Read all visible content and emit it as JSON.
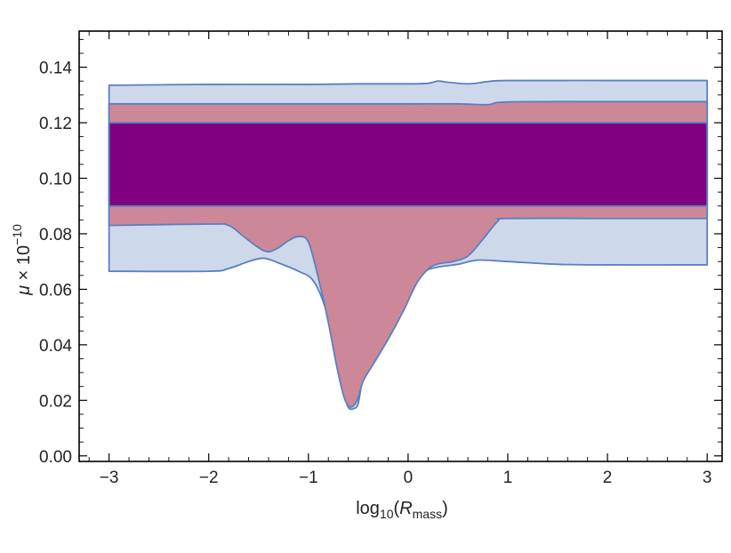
{
  "chart_data": {
    "type": "area",
    "title": "",
    "xlabel": {
      "prefix": "log",
      "prefix_sub": "10",
      "paren_open": "(",
      "var": "R",
      "var_sub": "mass",
      "paren_close": ")"
    },
    "ylabel": {
      "var": "μ",
      "times": " × 10",
      "exponent": "−10"
    },
    "xlim": [
      -3.3,
      3.15
    ],
    "ylim": [
      -0.002,
      0.153
    ],
    "x_ticks": [
      {
        "value": -3,
        "label": "−3"
      },
      {
        "value": -2,
        "label": "−2"
      },
      {
        "value": -1,
        "label": "−1"
      },
      {
        "value": 0,
        "label": "0"
      },
      {
        "value": 1,
        "label": "1"
      },
      {
        "value": 2,
        "label": "2"
      },
      {
        "value": 3,
        "label": "3"
      }
    ],
    "y_ticks": [
      {
        "value": 0.0,
        "label": "0.00"
      },
      {
        "value": 0.02,
        "label": "0.02"
      },
      {
        "value": 0.04,
        "label": "0.04"
      },
      {
        "value": 0.06,
        "label": "0.06"
      },
      {
        "value": 0.08,
        "label": "0.08"
      },
      {
        "value": 0.1,
        "label": "0.10"
      },
      {
        "value": 0.12,
        "label": "0.12"
      },
      {
        "value": 0.14,
        "label": "0.14"
      }
    ],
    "grid": false,
    "legend": "none",
    "colors": {
      "outer_band_fill": "#cdd9ea",
      "outer_band_stroke": "#5b7fc0",
      "middle_band_fill": "#cc8899",
      "inner_band_fill": "#800080"
    },
    "series": [
      {
        "layer": "outer",
        "upper": [
          [
            -3.0,
            0.1335
          ],
          [
            -2.0,
            0.1338
          ],
          [
            -1.0,
            0.1338
          ],
          [
            -0.5,
            0.134
          ],
          [
            0.0,
            0.134
          ],
          [
            0.2,
            0.1342
          ],
          [
            0.3,
            0.135
          ],
          [
            0.4,
            0.1346
          ],
          [
            0.6,
            0.134
          ],
          [
            0.8,
            0.1348
          ],
          [
            1.0,
            0.1352
          ],
          [
            2.0,
            0.1352
          ],
          [
            3.0,
            0.1352
          ]
        ],
        "lower": [
          [
            -3.0,
            0.0665
          ],
          [
            -2.0,
            0.0665
          ],
          [
            -1.8,
            0.0675
          ],
          [
            -1.6,
            0.07
          ],
          [
            -1.45,
            0.0712
          ],
          [
            -1.3,
            0.0695
          ],
          [
            -1.1,
            0.0665
          ],
          [
            -0.95,
            0.063
          ],
          [
            -0.82,
            0.052
          ],
          [
            -0.72,
            0.035
          ],
          [
            -0.65,
            0.023
          ],
          [
            -0.6,
            0.0175
          ],
          [
            -0.55,
            0.017
          ],
          [
            -0.5,
            0.019
          ],
          [
            -0.45,
            0.03
          ],
          [
            -0.4,
            0.039
          ],
          [
            -0.3,
            0.043
          ],
          [
            -0.15,
            0.051
          ],
          [
            0.0,
            0.059
          ],
          [
            0.15,
            0.066
          ],
          [
            0.3,
            0.068
          ],
          [
            0.5,
            0.069
          ],
          [
            0.7,
            0.0705
          ],
          [
            1.0,
            0.07
          ],
          [
            1.5,
            0.069
          ],
          [
            2.0,
            0.0688
          ],
          [
            3.0,
            0.0688
          ]
        ]
      },
      {
        "layer": "middle",
        "upper": [
          [
            -3.0,
            0.1268
          ],
          [
            -1.0,
            0.1268
          ],
          [
            0.0,
            0.1268
          ],
          [
            0.5,
            0.1268
          ],
          [
            0.8,
            0.1265
          ],
          [
            1.0,
            0.1275
          ],
          [
            2.0,
            0.1276
          ],
          [
            3.0,
            0.1276
          ]
        ],
        "lower": [
          [
            -3.0,
            0.083
          ],
          [
            -2.0,
            0.0835
          ],
          [
            -1.8,
            0.083
          ],
          [
            -1.65,
            0.079
          ],
          [
            -1.5,
            0.075
          ],
          [
            -1.4,
            0.0735
          ],
          [
            -1.3,
            0.075
          ],
          [
            -1.2,
            0.0775
          ],
          [
            -1.1,
            0.079
          ],
          [
            -1.0,
            0.077
          ],
          [
            -0.9,
            0.064
          ],
          [
            -0.8,
            0.048
          ],
          [
            -0.72,
            0.033
          ],
          [
            -0.65,
            0.022
          ],
          [
            -0.6,
            0.018
          ],
          [
            -0.55,
            0.018
          ],
          [
            -0.5,
            0.021
          ],
          [
            -0.45,
            0.027
          ],
          [
            -0.35,
            0.033
          ],
          [
            -0.2,
            0.042
          ],
          [
            -0.05,
            0.052
          ],
          [
            0.1,
            0.063
          ],
          [
            0.25,
            0.0685
          ],
          [
            0.45,
            0.07
          ],
          [
            0.6,
            0.072
          ],
          [
            0.75,
            0.078
          ],
          [
            0.9,
            0.0845
          ],
          [
            1.0,
            0.0855
          ],
          [
            2.0,
            0.0855
          ],
          [
            3.0,
            0.0855
          ]
        ]
      },
      {
        "layer": "inner",
        "upper": [
          [
            -3.0,
            0.12
          ],
          [
            3.0,
            0.12
          ]
        ],
        "lower": [
          [
            -3.0,
            0.09
          ],
          [
            3.0,
            0.09
          ]
        ]
      }
    ]
  }
}
